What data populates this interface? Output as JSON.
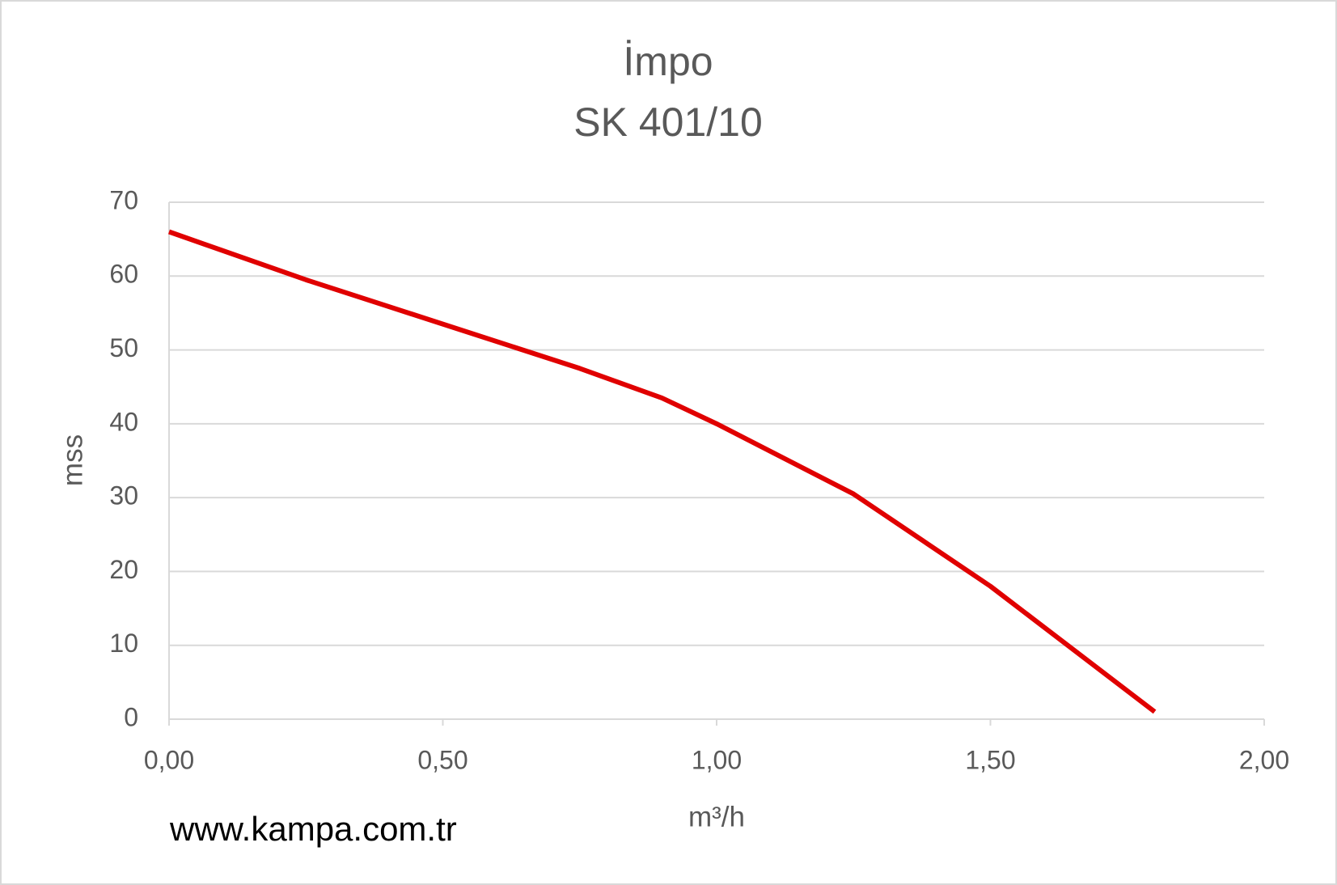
{
  "chart_data": {
    "type": "line",
    "title": "İmpo",
    "subtitle": "SK 401/10",
    "x_label": "m³/h",
    "y_label": "mss",
    "annotation": "www.kampa.com.tr",
    "x": [
      0,
      0.25,
      0.5,
      0.75,
      0.9,
      1.0,
      1.25,
      1.5,
      1.8
    ],
    "series": [
      {
        "name": "SK 401/10",
        "color": "#e00000",
        "values": [
          66,
          59.5,
          53.5,
          47.5,
          43.5,
          40,
          30.5,
          18,
          1
        ]
      }
    ],
    "xlim": [
      0,
      2
    ],
    "xticks": [
      {
        "value": 0,
        "label": "0,00"
      },
      {
        "value": 0.5,
        "label": "0,50"
      },
      {
        "value": 1,
        "label": "1,00"
      },
      {
        "value": 1.5,
        "label": "1,50"
      },
      {
        "value": 2,
        "label": "2,00"
      }
    ],
    "ylim": [
      0,
      70
    ],
    "yticks": [
      0,
      10,
      20,
      30,
      40,
      50,
      60,
      70
    ],
    "grid": true
  }
}
